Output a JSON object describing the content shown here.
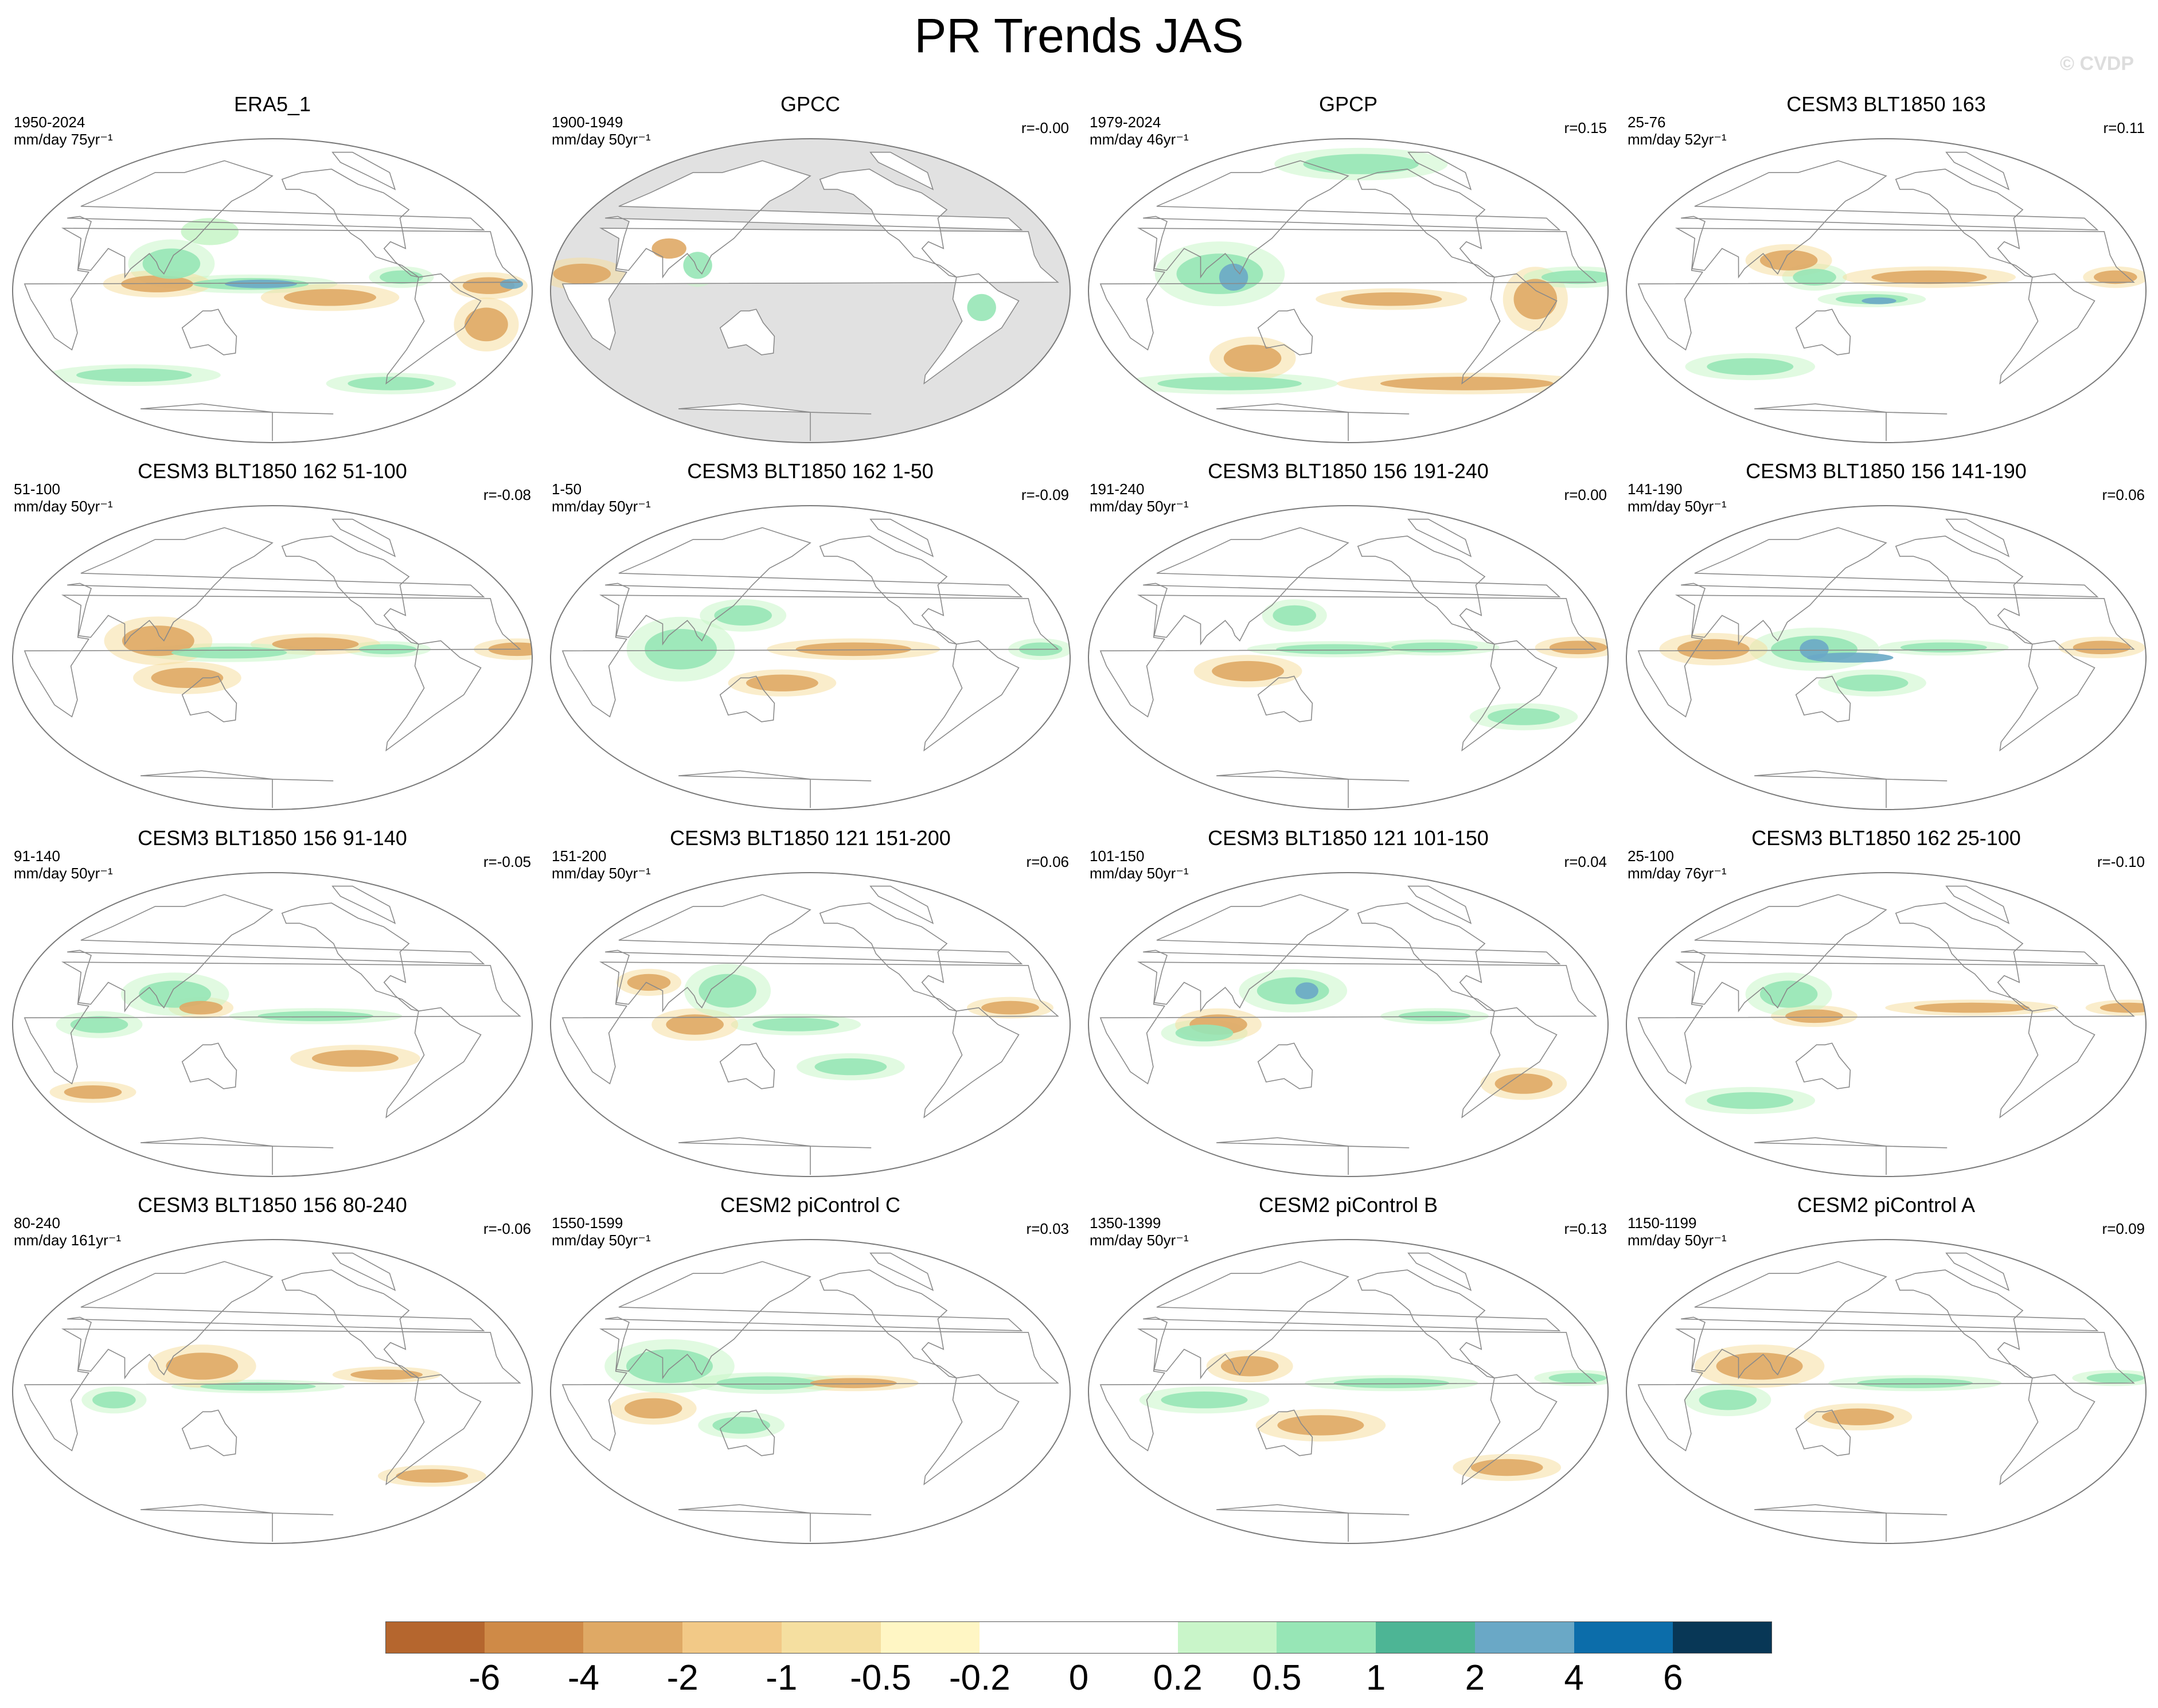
{
  "figure": {
    "title": "PR Trends JAS",
    "watermark": "© CVDP"
  },
  "palette": {
    "land_mask": "#e1e1e1",
    "coastline": "#8a8a8a",
    "border": "#7a7a7a"
  },
  "panels": [
    {
      "title": "ERA5_1",
      "years": "1950-2024",
      "units": "mm/day 75yr⁻¹",
      "r": "",
      "masked": false,
      "features": [
        [
          "dry",
          -140,
          -4,
          32,
          5
        ],
        [
          "dry",
          -30,
          3,
          18,
          5
        ],
        [
          "dry",
          100,
          4,
          25,
          5
        ],
        [
          "wet",
          165,
          4,
          40,
          3.5
        ],
        [
          "deep",
          172,
          4,
          25,
          2.5
        ],
        [
          "wet",
          108,
          16,
          20,
          9
        ],
        [
          "wet",
          -90,
          8,
          15,
          4
        ],
        [
          "wet",
          -60,
          -55,
          30,
          4
        ],
        [
          "dry",
          -25,
          -20,
          15,
          10
        ],
        [
          "wet",
          50,
          -50,
          40,
          4
        ],
        [
          "deep",
          -14,
          4,
          8,
          3
        ],
        [
          "light",
          130,
          35,
          20,
          8
        ]
      ]
    },
    {
      "title": "GPCC",
      "years": "1900-1949",
      "units": "mm/day 50yr⁻¹",
      "r": "r=-0.00",
      "masked": true,
      "features": [
        [
          "wet",
          100,
          15,
          10,
          8
        ],
        [
          "dry",
          75,
          25,
          12,
          6
        ],
        [
          "dry",
          20,
          10,
          20,
          6
        ],
        [
          "wet",
          -60,
          -10,
          10,
          8
        ]
      ]
    },
    {
      "title": "GPCP",
      "years": "1979-2024",
      "units": "mm/day 46yr⁻¹",
      "r": "r=0.15",
      "masked": false,
      "features": [
        [
          "wet",
          90,
          10,
          30,
          12
        ],
        [
          "deep",
          100,
          8,
          10,
          8
        ],
        [
          "dry",
          -150,
          -5,
          35,
          4
        ],
        [
          "wet",
          -20,
          8,
          25,
          4
        ],
        [
          "dry",
          -60,
          -55,
          60,
          4
        ],
        [
          "dry",
          100,
          -40,
          20,
          8
        ],
        [
          "wet",
          -160,
          75,
          40,
          6
        ],
        [
          "dry",
          -50,
          -5,
          15,
          12
        ],
        [
          "wet",
          60,
          -55,
          50,
          4
        ]
      ]
    },
    {
      "title": "CESM3 BLT1850 163",
      "years": "25-76",
      "units": "mm/day 52yr⁻¹",
      "r": "r=0.11",
      "masked": false,
      "features": [
        [
          "dry",
          -150,
          8,
          40,
          4
        ],
        [
          "dry",
          110,
          18,
          20,
          6
        ],
        [
          "wet",
          170,
          -5,
          25,
          3
        ],
        [
          "deep",
          175,
          -6,
          12,
          2
        ],
        [
          "wet",
          130,
          8,
          15,
          5
        ],
        [
          "dry",
          -20,
          8,
          15,
          4
        ],
        [
          "wet",
          60,
          -45,
          30,
          5
        ]
      ]
    },
    {
      "title": "CESM3 BLT1850 162 51-100",
      "years": "51-100",
      "units": "mm/day 50yr⁻¹",
      "r": "r=-0.08",
      "masked": false,
      "features": [
        [
          "dry",
          100,
          10,
          25,
          9
        ],
        [
          "wet",
          150,
          3,
          40,
          3.5
        ],
        [
          "dry",
          -150,
          8,
          30,
          4
        ],
        [
          "dry",
          120,
          -12,
          25,
          6
        ],
        [
          "wet",
          -100,
          5,
          20,
          3
        ],
        [
          "dry",
          -10,
          5,
          20,
          4
        ]
      ]
    },
    {
      "title": "CESM3 BLT1850 162 1-50",
      "years": "1-50",
      "units": "mm/day 50yr⁻¹",
      "r": "r=-0.09",
      "masked": false,
      "features": [
        [
          "wet",
          90,
          5,
          25,
          12
        ],
        [
          "dry",
          -150,
          5,
          40,
          4
        ],
        [
          "wet",
          130,
          25,
          20,
          6
        ],
        [
          "dry",
          160,
          -15,
          25,
          5
        ],
        [
          "wet",
          -20,
          5,
          15,
          4
        ]
      ]
    },
    {
      "title": "CESM3 BLT1850 156 191-240",
      "years": "191-240",
      "units": "mm/day 50yr⁻¹",
      "r": "r=0.00",
      "masked": false,
      "features": [
        [
          "dry",
          110,
          -8,
          25,
          6
        ],
        [
          "wet",
          170,
          5,
          40,
          3
        ],
        [
          "wet",
          -120,
          6,
          30,
          3
        ],
        [
          "dry",
          -20,
          6,
          20,
          4
        ],
        [
          "wet",
          140,
          25,
          15,
          6
        ],
        [
          "wet",
          -40,
          -35,
          25,
          5
        ]
      ]
    },
    {
      "title": "CESM3 BLT1850 156 141-190",
      "years": "141-190",
      "units": "mm/day 50yr⁻¹",
      "r": "r=0.06",
      "masked": false,
      "features": [
        [
          "dry",
          60,
          5,
          25,
          6
        ],
        [
          "wet",
          130,
          5,
          30,
          8
        ],
        [
          "deep",
          155,
          0,
          30,
          3
        ],
        [
          "deep",
          130,
          5,
          10,
          6
        ],
        [
          "wet",
          -140,
          6,
          30,
          3
        ],
        [
          "dry",
          -30,
          6,
          20,
          4
        ],
        [
          "wet",
          170,
          -15,
          25,
          5
        ]
      ]
    },
    {
      "title": "CESM3 BLT1850 156 91-140",
      "years": "91-140",
      "units": "mm/day 50yr⁻¹",
      "r": "r=-0.05",
      "masked": false,
      "features": [
        [
          "wet",
          110,
          18,
          25,
          8
        ],
        [
          "dry",
          130,
          10,
          15,
          4
        ],
        [
          "wet",
          -150,
          5,
          40,
          3
        ],
        [
          "dry",
          -120,
          -20,
          30,
          5
        ],
        [
          "wet",
          60,
          0,
          20,
          5
        ],
        [
          "dry",
          30,
          -40,
          20,
          4
        ]
      ]
    },
    {
      "title": "CESM3 BLT1850 121 151-200",
      "years": "151-200",
      "units": "mm/day 50yr⁻¹",
      "r": "r=0.06",
      "masked": false,
      "features": [
        [
          "wet",
          120,
          20,
          20,
          10
        ],
        [
          "dry",
          100,
          0,
          20,
          6
        ],
        [
          "wet",
          170,
          0,
          30,
          4
        ],
        [
          "dry",
          -40,
          10,
          20,
          4
        ],
        [
          "dry",
          60,
          25,
          15,
          5
        ],
        [
          "wet",
          -150,
          -25,
          25,
          5
        ]
      ]
    },
    {
      "title": "CESM3 BLT1850 121 101-150",
      "years": "101-150",
      "units": "mm/day 50yr⁻¹",
      "r": "r=0.04",
      "masked": false,
      "features": [
        [
          "wet",
          140,
          20,
          25,
          8
        ],
        [
          "deep",
          150,
          20,
          8,
          5
        ],
        [
          "dry",
          90,
          0,
          20,
          6
        ],
        [
          "wet",
          80,
          -5,
          20,
          5
        ],
        [
          "dry",
          -40,
          -35,
          20,
          6
        ],
        [
          "wet",
          -120,
          5,
          25,
          3
        ]
      ]
    },
    {
      "title": "CESM3 BLT1850 162 25-100",
      "years": "25-100",
      "units": "mm/day 76yr⁻¹",
      "r": "r=-0.10",
      "masked": false,
      "features": [
        [
          "wet",
          110,
          18,
          20,
          8
        ],
        [
          "dry",
          130,
          5,
          20,
          4
        ],
        [
          "dry",
          -120,
          10,
          40,
          3
        ],
        [
          "dry",
          -10,
          10,
          20,
          3
        ],
        [
          "wet",
          60,
          -45,
          30,
          5
        ]
      ]
    },
    {
      "title": "CESM3 BLT1850 156 80-240",
      "years": "80-240",
      "units": "mm/day 161yr⁻¹",
      "r": "r=-0.06",
      "masked": false,
      "features": [
        [
          "dry",
          130,
          15,
          25,
          8
        ],
        [
          "wet",
          170,
          3,
          40,
          2.5
        ],
        [
          "wet",
          70,
          -5,
          15,
          5
        ],
        [
          "dry",
          -100,
          10,
          25,
          3
        ],
        [
          "dry",
          -30,
          -50,
          25,
          4
        ]
      ]
    },
    {
      "title": "CESM2 piControl C",
      "years": "1550-1599",
      "units": "mm/day 50yr⁻¹",
      "r": "r=0.03",
      "masked": false,
      "features": [
        [
          "wet",
          80,
          15,
          30,
          10
        ],
        [
          "dry",
          70,
          -10,
          20,
          6
        ],
        [
          "wet",
          150,
          5,
          35,
          4
        ],
        [
          "dry",
          -150,
          5,
          30,
          3
        ],
        [
          "wet",
          130,
          -20,
          20,
          5
        ]
      ]
    },
    {
      "title": "CESM2 piControl B",
      "years": "1350-1399",
      "units": "mm/day 50yr⁻¹",
      "r": "r=0.13",
      "masked": false,
      "features": [
        [
          "wet",
          80,
          -5,
          30,
          5
        ],
        [
          "wet",
          -150,
          5,
          40,
          3
        ],
        [
          "dry",
          160,
          -20,
          30,
          6
        ],
        [
          "dry",
          -40,
          -45,
          25,
          5
        ],
        [
          "wet",
          -20,
          8,
          20,
          3
        ],
        [
          "dry",
          110,
          15,
          20,
          6
        ]
      ]
    },
    {
      "title": "CESM2 piControl A",
      "years": "1150-1199",
      "units": "mm/day 50yr⁻¹",
      "r": "r=0.09",
      "masked": false,
      "features": [
        [
          "dry",
          90,
          15,
          30,
          8
        ],
        [
          "wet",
          70,
          -5,
          20,
          6
        ],
        [
          "wet",
          -160,
          5,
          40,
          3
        ],
        [
          "wet",
          -20,
          8,
          20,
          3
        ],
        [
          "dry",
          160,
          -15,
          25,
          5
        ]
      ]
    }
  ],
  "colorbar": {
    "colors": [
      "#b5662e",
      "#cf8a47",
      "#dfa965",
      "#f2c987",
      "#f5dfa0",
      "#fff6c4",
      "#ffffff",
      "#ffffff",
      "#c9f5c9",
      "#97e6b6",
      "#4db595",
      "#6aa8c6",
      "#0c6daa",
      "#083756"
    ],
    "labels": [
      "-6",
      "-4",
      "-2",
      "-1",
      "-0.5",
      "-0.2",
      "0",
      "0.2",
      "0.5",
      "1",
      "2",
      "4",
      "6"
    ]
  }
}
